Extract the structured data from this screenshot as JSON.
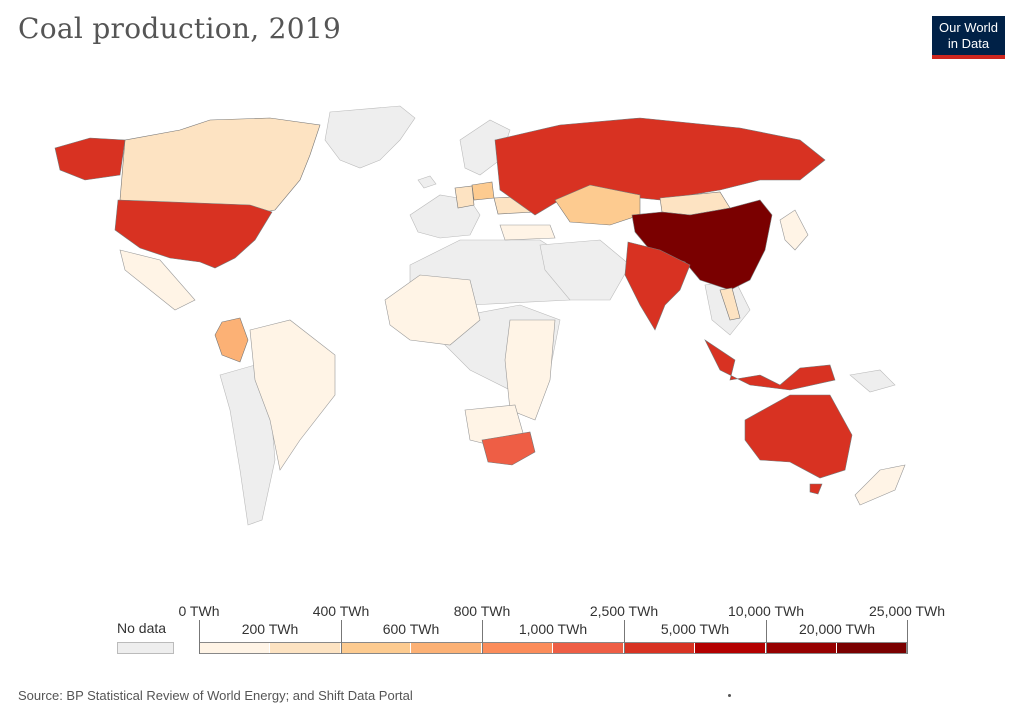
{
  "header": {
    "title": "Coal production, 2019",
    "logo_line1": "Our World",
    "logo_line2": "in Data"
  },
  "colors": {
    "no_data": "#eeeeee",
    "scale": [
      "#fff4e6",
      "#fde3c2",
      "#fdcb90",
      "#fcb175",
      "#fb8c5a",
      "#ee5e45",
      "#d83222",
      "#b30000",
      "#960000",
      "#7a0000"
    ]
  },
  "legend": {
    "no_data_label": "No data",
    "top_labels": [
      "0 TWh",
      "400 TWh",
      "800 TWh",
      "2,500 TWh",
      "10,000 TWh",
      "25,000 TWh"
    ],
    "bottom_labels": [
      "200 TWh",
      "600 TWh",
      "1,000 TWh",
      "5,000 TWh",
      "20,000 TWh"
    ]
  },
  "map_data": {
    "bins_twh": [
      0,
      200,
      400,
      600,
      800,
      1000,
      2500,
      5000,
      10000,
      20000,
      25000
    ],
    "countries": [
      {
        "name": "China",
        "bin": 9
      },
      {
        "name": "United States",
        "bin": 6
      },
      {
        "name": "Russia",
        "bin": 6
      },
      {
        "name": "India",
        "bin": 6
      },
      {
        "name": "Australia",
        "bin": 6
      },
      {
        "name": "Indonesia",
        "bin": 6
      },
      {
        "name": "South Africa",
        "bin": 5
      },
      {
        "name": "Colombia",
        "bin": 3
      },
      {
        "name": "Kazakhstan",
        "bin": 2
      },
      {
        "name": "Poland",
        "bin": 2
      },
      {
        "name": "Canada",
        "bin": 1
      },
      {
        "name": "Mongolia",
        "bin": 1
      },
      {
        "name": "Ukraine",
        "bin": 1
      },
      {
        "name": "Germany",
        "bin": 1
      },
      {
        "name": "Vietnam",
        "bin": 1
      },
      {
        "name": "Alaska",
        "bin": 6
      }
    ]
  },
  "footer": {
    "source": "Source: BP Statistical Review of World Energy; and Shift Data Portal"
  }
}
